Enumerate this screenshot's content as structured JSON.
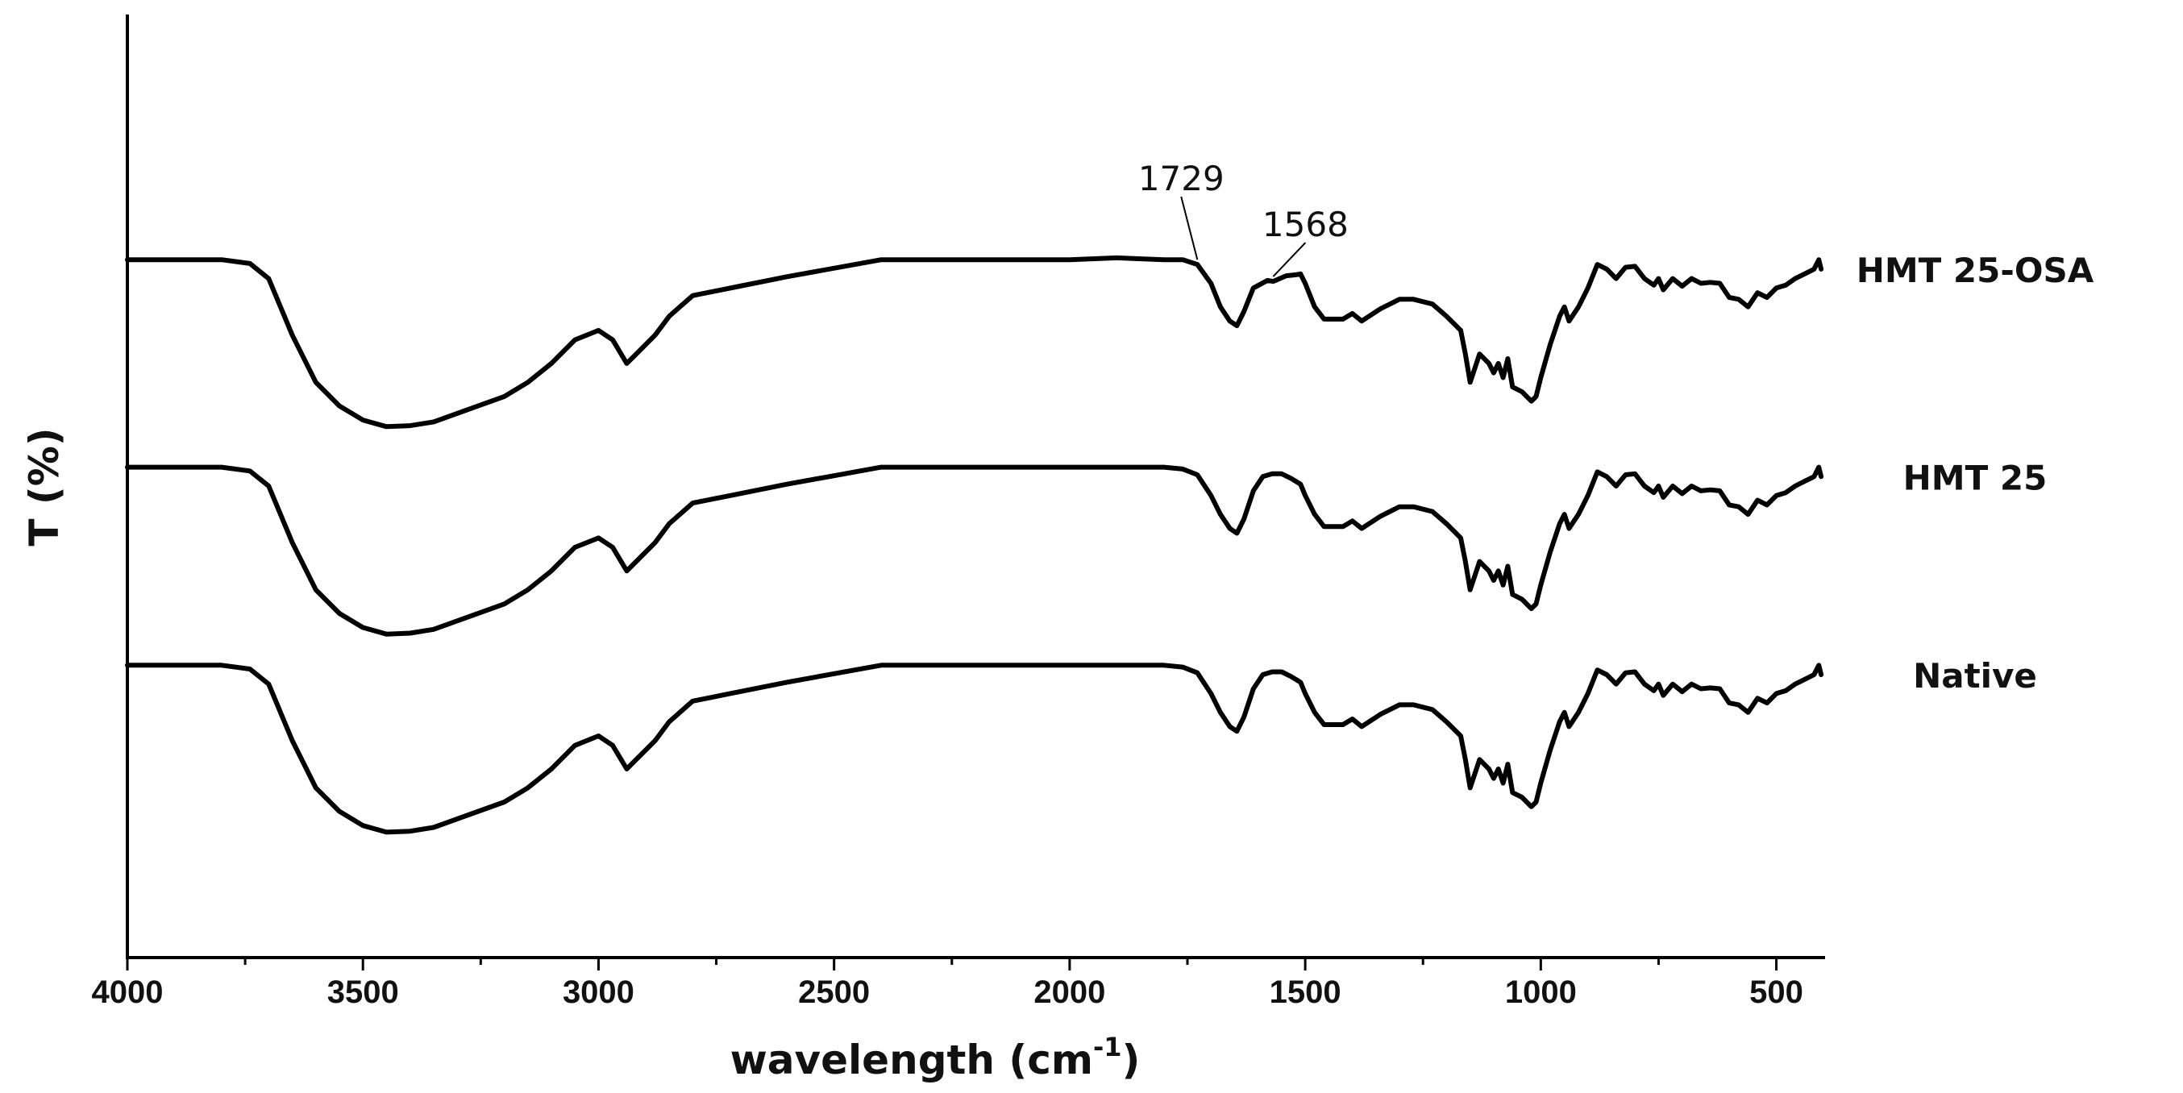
{
  "chart_data": {
    "type": "line",
    "title": "",
    "xlabel": "wavelength (cm",
    "xlabel_sup": "-1",
    "xlabel_close": ")",
    "ylabel": "T (%)",
    "xlim": [
      4000,
      400
    ],
    "ylim": [
      0,
      100
    ],
    "x_ticks": [
      4000,
      3500,
      3000,
      2500,
      2000,
      1500,
      1000,
      500
    ],
    "x_tick_labels": [
      "4000",
      "3500",
      "3000",
      "2500",
      "2000",
      "1500",
      "1000",
      "500"
    ],
    "yticks_shown": false,
    "series": [
      {
        "name": "HMT 25-OSA",
        "offset": 74,
        "points": [
          [
            4000,
            85
          ],
          [
            3800,
            85
          ],
          [
            3740,
            84.6
          ],
          [
            3700,
            83
          ],
          [
            3650,
            77
          ],
          [
            3600,
            72
          ],
          [
            3550,
            69.5
          ],
          [
            3500,
            68
          ],
          [
            3450,
            67.3
          ],
          [
            3400,
            67.4
          ],
          [
            3350,
            67.8
          ],
          [
            3300,
            68.7
          ],
          [
            3200,
            70.5
          ],
          [
            3150,
            72
          ],
          [
            3100,
            74
          ],
          [
            3050,
            76.5
          ],
          [
            3000,
            77.5
          ],
          [
            2970,
            76.5
          ],
          [
            2940,
            74
          ],
          [
            2920,
            75
          ],
          [
            2900,
            76
          ],
          [
            2880,
            77
          ],
          [
            2850,
            79
          ],
          [
            2800,
            81.2
          ],
          [
            2700,
            82.2
          ],
          [
            2600,
            83.2
          ],
          [
            2400,
            85
          ],
          [
            2200,
            85
          ],
          [
            2000,
            85
          ],
          [
            1900,
            85.2
          ],
          [
            1800,
            85
          ],
          [
            1760,
            85
          ],
          [
            1729,
            84.5
          ],
          [
            1700,
            82.5
          ],
          [
            1680,
            80
          ],
          [
            1660,
            78.5
          ],
          [
            1645,
            78
          ],
          [
            1630,
            79.5
          ],
          [
            1610,
            82
          ],
          [
            1580,
            82.8
          ],
          [
            1568,
            82.7
          ],
          [
            1540,
            83.3
          ],
          [
            1520,
            83.4
          ],
          [
            1510,
            83.5
          ],
          [
            1500,
            82.5
          ],
          [
            1480,
            80
          ],
          [
            1460,
            78.7
          ],
          [
            1420,
            78.7
          ],
          [
            1400,
            79.3
          ],
          [
            1380,
            78.5
          ],
          [
            1340,
            79.8
          ],
          [
            1300,
            80.8
          ],
          [
            1270,
            80.8
          ],
          [
            1230,
            80.3
          ],
          [
            1200,
            79
          ],
          [
            1170,
            77.5
          ],
          [
            1160,
            75
          ],
          [
            1150,
            72
          ],
          [
            1130,
            75
          ],
          [
            1110,
            74
          ],
          [
            1100,
            73
          ],
          [
            1090,
            74
          ],
          [
            1080,
            72.5
          ],
          [
            1070,
            74.5
          ],
          [
            1060,
            71.5
          ],
          [
            1040,
            71
          ],
          [
            1020,
            70
          ],
          [
            1010,
            70.5
          ],
          [
            1000,
            72.5
          ],
          [
            980,
            76
          ],
          [
            960,
            79
          ],
          [
            950,
            80
          ],
          [
            940,
            78.5
          ],
          [
            920,
            80
          ],
          [
            900,
            82
          ],
          [
            880,
            84.5
          ],
          [
            860,
            84
          ],
          [
            840,
            83
          ],
          [
            820,
            84.2
          ],
          [
            800,
            84.3
          ],
          [
            780,
            83
          ],
          [
            760,
            82.3
          ],
          [
            750,
            83
          ],
          [
            740,
            81.8
          ],
          [
            720,
            83
          ],
          [
            700,
            82.2
          ],
          [
            680,
            83
          ],
          [
            660,
            82.5
          ],
          [
            640,
            82.6
          ],
          [
            620,
            82.5
          ],
          [
            600,
            81
          ],
          [
            580,
            80.8
          ],
          [
            560,
            80
          ],
          [
            540,
            81.5
          ],
          [
            520,
            81
          ],
          [
            500,
            82
          ],
          [
            480,
            82.3
          ],
          [
            460,
            83
          ],
          [
            440,
            83.5
          ],
          [
            420,
            84
          ],
          [
            410,
            85
          ],
          [
            405,
            84
          ]
        ]
      },
      {
        "name": "HMT 25",
        "offset": 52,
        "points": [
          [
            4000,
            85
          ],
          [
            3800,
            85
          ],
          [
            3740,
            84.6
          ],
          [
            3700,
            83
          ],
          [
            3650,
            77
          ],
          [
            3600,
            72
          ],
          [
            3550,
            69.5
          ],
          [
            3500,
            68
          ],
          [
            3450,
            67.3
          ],
          [
            3400,
            67.4
          ],
          [
            3350,
            67.8
          ],
          [
            3300,
            68.7
          ],
          [
            3200,
            70.5
          ],
          [
            3150,
            72
          ],
          [
            3100,
            74
          ],
          [
            3050,
            76.5
          ],
          [
            3000,
            77.5
          ],
          [
            2970,
            76.5
          ],
          [
            2940,
            74
          ],
          [
            2920,
            75
          ],
          [
            2900,
            76
          ],
          [
            2880,
            77
          ],
          [
            2850,
            79
          ],
          [
            2800,
            81.2
          ],
          [
            2700,
            82.2
          ],
          [
            2600,
            83.2
          ],
          [
            2400,
            85
          ],
          [
            2200,
            85
          ],
          [
            2000,
            85
          ],
          [
            1900,
            85
          ],
          [
            1800,
            85
          ],
          [
            1760,
            84.8
          ],
          [
            1729,
            84.2
          ],
          [
            1700,
            82
          ],
          [
            1680,
            80
          ],
          [
            1660,
            78.5
          ],
          [
            1645,
            78
          ],
          [
            1630,
            79.5
          ],
          [
            1610,
            82.5
          ],
          [
            1590,
            84
          ],
          [
            1570,
            84.3
          ],
          [
            1550,
            84.3
          ],
          [
            1530,
            83.8
          ],
          [
            1510,
            83.2
          ],
          [
            1500,
            82
          ],
          [
            1480,
            80
          ],
          [
            1460,
            78.7
          ],
          [
            1420,
            78.7
          ],
          [
            1400,
            79.3
          ],
          [
            1380,
            78.5
          ],
          [
            1340,
            79.8
          ],
          [
            1300,
            80.8
          ],
          [
            1270,
            80.8
          ],
          [
            1230,
            80.3
          ],
          [
            1200,
            79
          ],
          [
            1170,
            77.5
          ],
          [
            1160,
            75
          ],
          [
            1150,
            72
          ],
          [
            1130,
            75
          ],
          [
            1110,
            74
          ],
          [
            1100,
            73
          ],
          [
            1090,
            74
          ],
          [
            1080,
            72.5
          ],
          [
            1070,
            74.5
          ],
          [
            1060,
            71.5
          ],
          [
            1040,
            71
          ],
          [
            1020,
            70
          ],
          [
            1010,
            70.5
          ],
          [
            1000,
            72.5
          ],
          [
            980,
            76
          ],
          [
            960,
            79
          ],
          [
            950,
            80
          ],
          [
            940,
            78.5
          ],
          [
            920,
            80
          ],
          [
            900,
            82
          ],
          [
            880,
            84.5
          ],
          [
            860,
            84
          ],
          [
            840,
            83
          ],
          [
            820,
            84.2
          ],
          [
            800,
            84.3
          ],
          [
            780,
            83
          ],
          [
            760,
            82.3
          ],
          [
            750,
            83
          ],
          [
            740,
            81.8
          ],
          [
            720,
            83
          ],
          [
            700,
            82.2
          ],
          [
            680,
            83
          ],
          [
            660,
            82.5
          ],
          [
            640,
            82.6
          ],
          [
            620,
            82.5
          ],
          [
            600,
            81
          ],
          [
            580,
            80.8
          ],
          [
            560,
            80
          ],
          [
            540,
            81.5
          ],
          [
            520,
            81
          ],
          [
            500,
            82
          ],
          [
            480,
            82.3
          ],
          [
            460,
            83
          ],
          [
            440,
            83.5
          ],
          [
            420,
            84
          ],
          [
            410,
            85
          ],
          [
            405,
            84
          ]
        ]
      },
      {
        "name": "Native",
        "offset": 31,
        "points": [
          [
            4000,
            85
          ],
          [
            3800,
            85
          ],
          [
            3740,
            84.6
          ],
          [
            3700,
            83
          ],
          [
            3650,
            77
          ],
          [
            3600,
            72
          ],
          [
            3550,
            69.5
          ],
          [
            3500,
            68
          ],
          [
            3450,
            67.3
          ],
          [
            3400,
            67.4
          ],
          [
            3350,
            67.8
          ],
          [
            3300,
            68.7
          ],
          [
            3200,
            70.5
          ],
          [
            3150,
            72
          ],
          [
            3100,
            74
          ],
          [
            3050,
            76.5
          ],
          [
            3000,
            77.5
          ],
          [
            2970,
            76.5
          ],
          [
            2940,
            74
          ],
          [
            2920,
            75
          ],
          [
            2900,
            76
          ],
          [
            2880,
            77
          ],
          [
            2850,
            79
          ],
          [
            2800,
            81.2
          ],
          [
            2700,
            82.2
          ],
          [
            2600,
            83.2
          ],
          [
            2400,
            85
          ],
          [
            2200,
            85
          ],
          [
            2000,
            85
          ],
          [
            1900,
            85
          ],
          [
            1800,
            85
          ],
          [
            1760,
            84.8
          ],
          [
            1729,
            84.2
          ],
          [
            1700,
            82
          ],
          [
            1680,
            80
          ],
          [
            1660,
            78.5
          ],
          [
            1645,
            78
          ],
          [
            1630,
            79.5
          ],
          [
            1610,
            82.5
          ],
          [
            1590,
            84
          ],
          [
            1570,
            84.3
          ],
          [
            1550,
            84.3
          ],
          [
            1530,
            83.8
          ],
          [
            1510,
            83.2
          ],
          [
            1500,
            82
          ],
          [
            1480,
            80
          ],
          [
            1460,
            78.7
          ],
          [
            1420,
            78.7
          ],
          [
            1400,
            79.3
          ],
          [
            1380,
            78.5
          ],
          [
            1340,
            79.8
          ],
          [
            1300,
            80.8
          ],
          [
            1270,
            80.8
          ],
          [
            1230,
            80.3
          ],
          [
            1200,
            79
          ],
          [
            1170,
            77.5
          ],
          [
            1160,
            75
          ],
          [
            1150,
            72
          ],
          [
            1130,
            75
          ],
          [
            1110,
            74
          ],
          [
            1100,
            73
          ],
          [
            1090,
            74
          ],
          [
            1080,
            72.5
          ],
          [
            1070,
            74.5
          ],
          [
            1060,
            71.5
          ],
          [
            1040,
            71
          ],
          [
            1020,
            70
          ],
          [
            1010,
            70.5
          ],
          [
            1000,
            72.5
          ],
          [
            980,
            76
          ],
          [
            960,
            79
          ],
          [
            950,
            80
          ],
          [
            940,
            78.5
          ],
          [
            920,
            80
          ],
          [
            900,
            82
          ],
          [
            880,
            84.5
          ],
          [
            860,
            84
          ],
          [
            840,
            83
          ],
          [
            820,
            84.2
          ],
          [
            800,
            84.3
          ],
          [
            780,
            83
          ],
          [
            760,
            82.3
          ],
          [
            750,
            83
          ],
          [
            740,
            81.8
          ],
          [
            720,
            83
          ],
          [
            700,
            82.2
          ],
          [
            680,
            83
          ],
          [
            660,
            82.5
          ],
          [
            640,
            82.6
          ],
          [
            620,
            82.5
          ],
          [
            600,
            81
          ],
          [
            580,
            80.8
          ],
          [
            560,
            80
          ],
          [
            540,
            81.5
          ],
          [
            520,
            81
          ],
          [
            500,
            82
          ],
          [
            480,
            82.3
          ],
          [
            460,
            83
          ],
          [
            440,
            83.5
          ],
          [
            420,
            84
          ],
          [
            410,
            85
          ],
          [
            405,
            84
          ]
        ]
      }
    ],
    "annotations": [
      {
        "label": "1729",
        "x": 1729,
        "series": "HMT 25-OSA"
      },
      {
        "label": "1568",
        "x": 1568,
        "series": "HMT 25-OSA"
      }
    ]
  }
}
